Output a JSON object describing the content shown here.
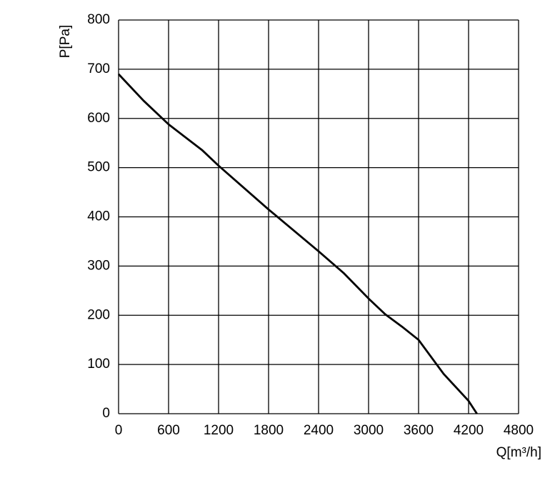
{
  "chart_data": {
    "type": "line",
    "x_label": "Q[m³/h]",
    "y_label": "P[Pa]",
    "x": [
      0,
      300,
      600,
      1000,
      1200,
      1800,
      2400,
      2700,
      3000,
      3200,
      3400,
      3600,
      3900,
      4200,
      4300
    ],
    "series": [
      {
        "color": "#000000",
        "values": [
          690,
          636,
          588,
          536,
          504,
          415,
          330,
          286,
          234,
          202,
          177,
          150,
          81,
          26,
          0
        ]
      }
    ],
    "xlim": [
      0,
      4800
    ],
    "xticks": [
      0,
      600,
      1200,
      1800,
      2400,
      3000,
      3600,
      4200,
      4800
    ],
    "ylim": [
      0,
      800
    ],
    "yticks": [
      0,
      100,
      200,
      300,
      400,
      500,
      600,
      700,
      800
    ],
    "grid": true
  }
}
